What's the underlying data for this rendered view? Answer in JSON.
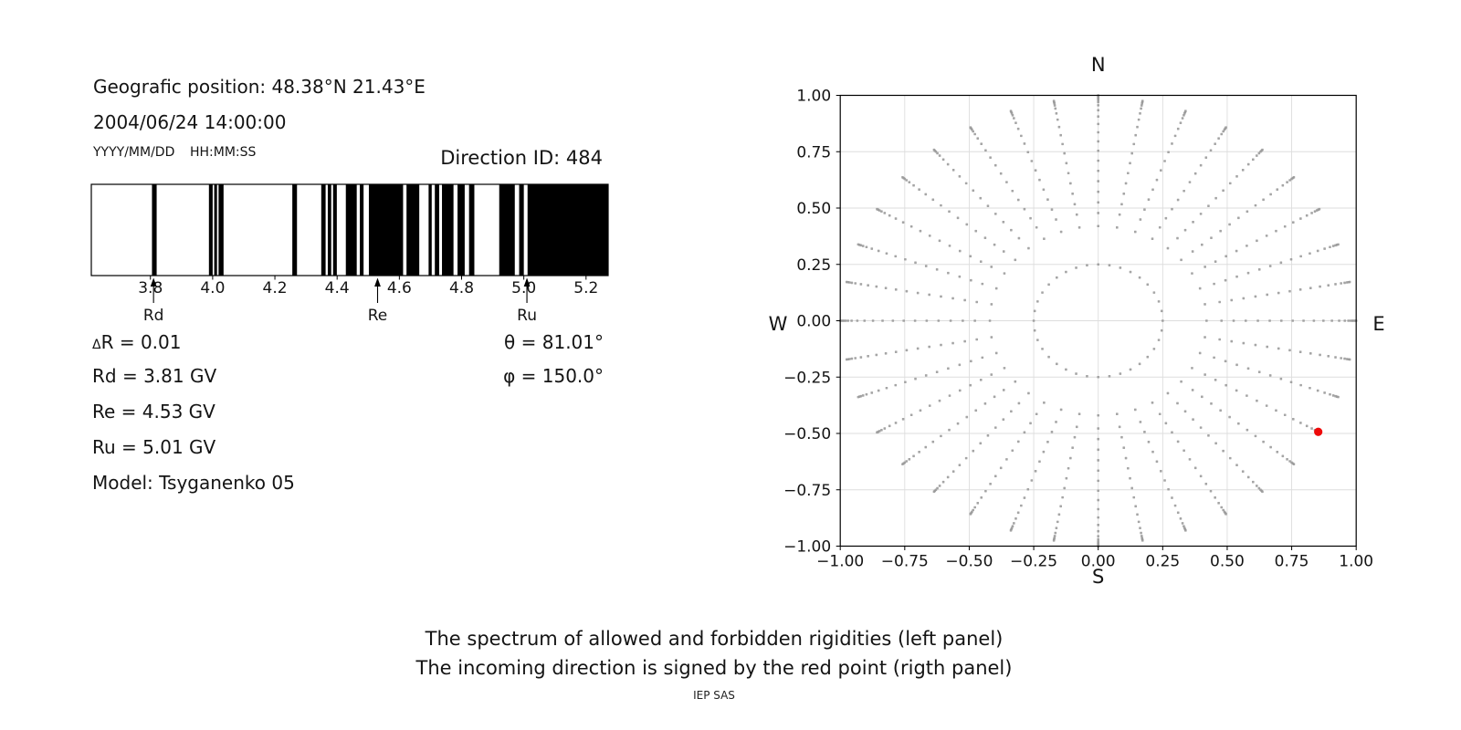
{
  "info_panel": {
    "geo_position": "Geografic position: 48.38°N 21.43°E",
    "datetime": "2004/06/24 14:00:00",
    "date_format_label": "YYYY/MM/DD",
    "time_format_label": "HH:MM:SS",
    "direction_id": "Direction ID: 484",
    "delta_symbol": "Δ",
    "delta_rest": "R = 0.01",
    "rd_value": "Rd = 3.81 GV",
    "re_value": "Re = 4.53 GV",
    "ru_value": "Ru = 5.01 GV",
    "model": "Model: Tsyganenko 05",
    "theta_value": "θ = 81.01°",
    "phi_value": "φ = 150.0°"
  },
  "captions": {
    "line1": "The spectrum of allowed and forbidden rigidities (left panel)",
    "line2": "The incoming direction is signed by the red point (rigth panel)",
    "credit": "IEP SAS"
  },
  "chart_data": [
    {
      "id": "rigidity-spectrum",
      "type": "bar",
      "description": "Barcode-style spectrum of allowed (black) and forbidden (white) rigidities in GV",
      "xlim": [
        3.61,
        5.271
      ],
      "xticks": [
        3.8,
        4.0,
        4.2,
        4.4,
        4.6,
        4.8,
        5.0,
        5.2
      ],
      "xtick_labels": [
        "3.8",
        "4.0",
        "4.2",
        "4.4",
        "4.6",
        "4.8",
        "5.0",
        "5.2"
      ],
      "bar_color": "#000000",
      "allowed_intervals_gv": [
        [
          3.805,
          3.82
        ],
        [
          3.988,
          4.0
        ],
        [
          4.005,
          4.014
        ],
        [
          4.019,
          4.035
        ],
        [
          4.256,
          4.271
        ],
        [
          4.349,
          4.363
        ],
        [
          4.37,
          4.381
        ],
        [
          4.387,
          4.399
        ],
        [
          4.428,
          4.463
        ],
        [
          4.473,
          4.485
        ],
        [
          4.502,
          4.612
        ],
        [
          4.623,
          4.664
        ],
        [
          4.694,
          4.704
        ],
        [
          4.714,
          4.728
        ],
        [
          4.737,
          4.774
        ],
        [
          4.787,
          4.81
        ],
        [
          4.824,
          4.841
        ],
        [
          4.921,
          4.971
        ],
        [
          4.985,
          5.0
        ],
        [
          5.012,
          5.271
        ]
      ],
      "markers": [
        {
          "label": "Rd",
          "x_gv": 3.81
        },
        {
          "label": "Re",
          "x_gv": 4.53
        },
        {
          "label": "Ru",
          "x_gv": 5.01
        }
      ]
    },
    {
      "id": "incoming-direction-map",
      "type": "scatter",
      "description": "Asymptotic direction map; gray dotted spokes every 10 degrees, red point marks incoming direction",
      "xlim": [
        -1.0,
        1.0
      ],
      "ylim": [
        -1.0,
        1.0
      ],
      "xticks": [
        -1.0,
        -0.75,
        -0.5,
        -0.25,
        0.0,
        0.25,
        0.5,
        0.75,
        1.0
      ],
      "yticks": [
        1.0,
        0.75,
        0.5,
        0.25,
        0.0,
        -0.25,
        -0.5,
        -0.75,
        -1.0
      ],
      "xtick_labels": [
        "−1.00",
        "−0.75",
        "−0.50",
        "−0.25",
        "0.00",
        "0.25",
        "0.50",
        "0.75",
        "1.00"
      ],
      "ytick_labels": [
        "1.00",
        "0.75",
        "0.50",
        "0.25",
        "0.00",
        "−0.25",
        "−0.50",
        "−0.75",
        "−1.00"
      ],
      "grid": true,
      "grid_color": "#dddddd",
      "compass": {
        "top": "N",
        "bottom": "S",
        "left": "W",
        "right": "E"
      },
      "dot_color": "#999999",
      "spokes": {
        "angles_deg": [
          0,
          10,
          20,
          30,
          40,
          50,
          60,
          70,
          80,
          90,
          100,
          110,
          120,
          130,
          140,
          150,
          160,
          170,
          180,
          190,
          200,
          210,
          220,
          230,
          240,
          250,
          260,
          270,
          280,
          290,
          300,
          310,
          320,
          330,
          340,
          350
        ],
        "radii": [
          0.25,
          0.42,
          0.478,
          0.525,
          0.572,
          0.619,
          0.665,
          0.71,
          0.754,
          0.796,
          0.836,
          0.873,
          0.906,
          0.934,
          0.956,
          0.97,
          0.979,
          0.985,
          0.99
        ],
        "cardinal_extra_radii": [
          0.996,
          1.0
        ]
      },
      "red_point": {
        "x": 0.853,
        "y": -0.493,
        "color": "#ee0a0a",
        "angle_deg": 330,
        "radius": 0.985
      }
    }
  ]
}
